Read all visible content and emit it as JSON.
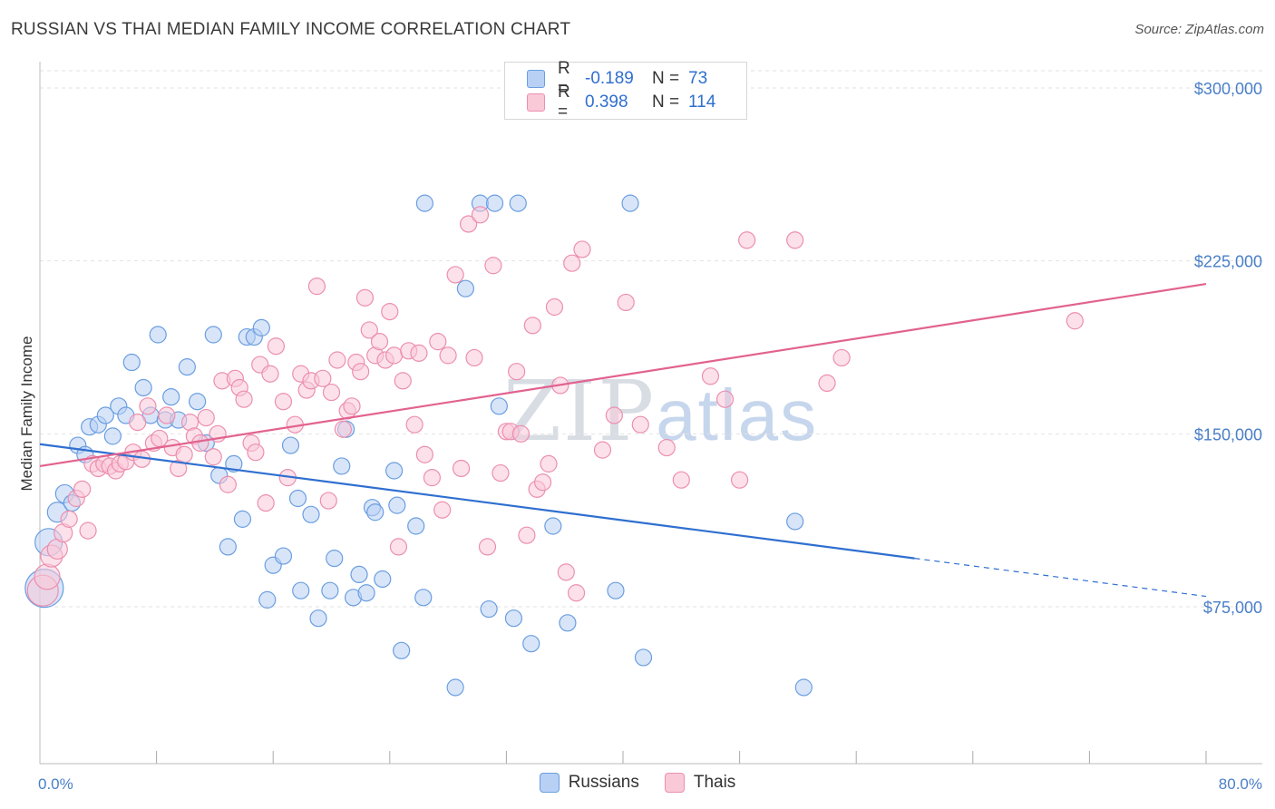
{
  "title": "RUSSIAN VS THAI MEDIAN FAMILY INCOME CORRELATION CHART",
  "source": "Source: ZipAtlas.com",
  "watermark": {
    "zip": "ZIP",
    "atlas": "atlas"
  },
  "colors": {
    "russians_fill": "#b8d0f4",
    "russians_stroke": "#6a9ee0",
    "russians_line": "#2f6fd0",
    "thais_fill": "#f9c9d8",
    "thais_stroke": "#ec8fae",
    "thais_line": "#e2628f",
    "tick_text": "#4a7fc8",
    "grid": "#e2e2e2"
  },
  "legend": {
    "rows": [
      {
        "r_label": "R =",
        "r_value": "-0.189",
        "n_label": "N =",
        "n_value": "73"
      },
      {
        "r_label": "R =",
        "r_value": "0.398",
        "n_label": "N =",
        "n_value": "114"
      }
    ]
  },
  "bottom_legend": [
    "Russians",
    "Thais"
  ],
  "chart_data": {
    "type": "scatter",
    "title": "RUSSIAN VS THAI MEDIAN FAMILY INCOME CORRELATION CHART",
    "ylabel": "Median Family Income",
    "xlabel": "",
    "xlim": [
      0,
      80
    ],
    "ylim": [
      0,
      315000
    ],
    "x_tick_labels": [
      "0.0%",
      "80.0%"
    ],
    "y_ticks": [
      75000,
      150000,
      225000,
      300000
    ],
    "y_tick_labels": [
      "$75,000",
      "$150,000",
      "$225,000",
      "$300,000"
    ],
    "grid": true,
    "legend_position": "top-center",
    "series": [
      {
        "name": "Russians",
        "trend": {
          "x0": 0,
          "y0": 145500,
          "x1": 60,
          "y1": 96000,
          "dashed_to_x": 80,
          "dashed_to_y": 79500
        },
        "points": [
          [
            0.3,
            83000,
            20
          ],
          [
            0.6,
            103000,
            14
          ],
          [
            1.2,
            116000,
            10
          ],
          [
            1.7,
            124000,
            9
          ],
          [
            2.2,
            120000,
            8
          ],
          [
            2.6,
            145000,
            8
          ],
          [
            3.1,
            141000,
            8
          ],
          [
            3.4,
            153000,
            8
          ],
          [
            4.0,
            154000,
            8
          ],
          [
            4.5,
            158000,
            8
          ],
          [
            5.0,
            149000,
            8
          ],
          [
            5.4,
            162000,
            8
          ],
          [
            5.9,
            158000,
            8
          ],
          [
            6.3,
            181000,
            8
          ],
          [
            7.1,
            170000,
            8
          ],
          [
            7.6,
            158000,
            8
          ],
          [
            8.1,
            193000,
            8
          ],
          [
            8.6,
            156000,
            8
          ],
          [
            9.0,
            166000,
            8
          ],
          [
            9.5,
            156000,
            8
          ],
          [
            10.1,
            179000,
            8
          ],
          [
            10.8,
            164000,
            8
          ],
          [
            11.4,
            146000,
            8
          ],
          [
            11.9,
            193000,
            8
          ],
          [
            12.3,
            132000,
            8
          ],
          [
            12.9,
            101000,
            8
          ],
          [
            13.3,
            137000,
            8
          ],
          [
            13.9,
            113000,
            8
          ],
          [
            14.2,
            192000,
            8
          ],
          [
            14.7,
            192000,
            8
          ],
          [
            15.2,
            196000,
            8
          ],
          [
            15.6,
            78000,
            8
          ],
          [
            16.0,
            93000,
            8
          ],
          [
            16.7,
            97000,
            8
          ],
          [
            17.2,
            145000,
            8
          ],
          [
            17.7,
            122000,
            8
          ],
          [
            17.9,
            82000,
            8
          ],
          [
            18.6,
            115000,
            8
          ],
          [
            19.1,
            70000,
            8
          ],
          [
            19.9,
            82000,
            8
          ],
          [
            20.2,
            96000,
            8
          ],
          [
            20.7,
            136000,
            8
          ],
          [
            21.0,
            152000,
            8
          ],
          [
            21.5,
            79000,
            8
          ],
          [
            21.9,
            89000,
            8
          ],
          [
            22.4,
            81000,
            8
          ],
          [
            22.8,
            118000,
            8
          ],
          [
            23.0,
            116000,
            8
          ],
          [
            23.5,
            87000,
            8
          ],
          [
            24.3,
            134000,
            8
          ],
          [
            24.5,
            119000,
            8
          ],
          [
            24.8,
            56000,
            8
          ],
          [
            25.8,
            110000,
            8
          ],
          [
            26.3,
            79000,
            8
          ],
          [
            26.4,
            250000,
            8
          ],
          [
            28.5,
            40000,
            8
          ],
          [
            29.2,
            213000,
            8
          ],
          [
            30.2,
            250000,
            8
          ],
          [
            30.8,
            74000,
            8
          ],
          [
            31.2,
            250000,
            8
          ],
          [
            31.5,
            162000,
            8
          ],
          [
            32.5,
            70000,
            8
          ],
          [
            32.8,
            250000,
            8
          ],
          [
            33.7,
            59000,
            8
          ],
          [
            35.2,
            110000,
            8
          ],
          [
            36.2,
            68000,
            8
          ],
          [
            39.5,
            82000,
            8
          ],
          [
            40.5,
            250000,
            8
          ],
          [
            41.4,
            53000,
            8
          ],
          [
            51.8,
            112000,
            8
          ],
          [
            52.4,
            40000,
            8
          ]
        ]
      },
      {
        "name": "Thais",
        "trend": {
          "x0": 0,
          "y0": 136000,
          "x1": 80,
          "y1": 215000
        },
        "points": [
          [
            0.2,
            82000,
            16
          ],
          [
            0.5,
            88000,
            13
          ],
          [
            0.8,
            97000,
            11
          ],
          [
            1.2,
            100000,
            10
          ],
          [
            1.6,
            107000,
            9
          ],
          [
            2.0,
            113000,
            8
          ],
          [
            2.5,
            122000,
            8
          ],
          [
            2.9,
            126000,
            8
          ],
          [
            3.3,
            108000,
            8
          ],
          [
            3.6,
            137000,
            8
          ],
          [
            4.0,
            135000,
            8
          ],
          [
            4.4,
            137000,
            8
          ],
          [
            4.8,
            136000,
            8
          ],
          [
            5.2,
            134000,
            8
          ],
          [
            5.5,
            137000,
            8
          ],
          [
            5.9,
            138000,
            8
          ],
          [
            6.4,
            142000,
            8
          ],
          [
            6.7,
            155000,
            8
          ],
          [
            7.0,
            139000,
            8
          ],
          [
            7.4,
            162000,
            8
          ],
          [
            7.8,
            146000,
            8
          ],
          [
            8.2,
            148000,
            8
          ],
          [
            8.7,
            158000,
            8
          ],
          [
            9.1,
            144000,
            8
          ],
          [
            9.5,
            135000,
            8
          ],
          [
            9.9,
            141000,
            8
          ],
          [
            10.3,
            155000,
            8
          ],
          [
            10.6,
            149000,
            8
          ],
          [
            11.0,
            146000,
            8
          ],
          [
            11.4,
            157000,
            8
          ],
          [
            11.9,
            140000,
            8
          ],
          [
            12.2,
            150000,
            8
          ],
          [
            12.5,
            173000,
            8
          ],
          [
            12.9,
            128000,
            8
          ],
          [
            13.4,
            174000,
            8
          ],
          [
            13.7,
            170000,
            8
          ],
          [
            14.0,
            165000,
            8
          ],
          [
            14.5,
            146000,
            8
          ],
          [
            14.8,
            142000,
            8
          ],
          [
            15.1,
            180000,
            8
          ],
          [
            15.5,
            120000,
            8
          ],
          [
            15.8,
            176000,
            8
          ],
          [
            16.2,
            188000,
            8
          ],
          [
            16.7,
            164000,
            8
          ],
          [
            17.0,
            131000,
            8
          ],
          [
            17.5,
            154000,
            8
          ],
          [
            17.9,
            176000,
            8
          ],
          [
            18.3,
            169000,
            8
          ],
          [
            18.6,
            173000,
            8
          ],
          [
            19.0,
            214000,
            8
          ],
          [
            19.4,
            174000,
            8
          ],
          [
            19.8,
            121000,
            8
          ],
          [
            20.0,
            168000,
            8
          ],
          [
            20.4,
            182000,
            8
          ],
          [
            20.8,
            152000,
            8
          ],
          [
            21.1,
            160000,
            8
          ],
          [
            21.4,
            162000,
            8
          ],
          [
            21.7,
            181000,
            8
          ],
          [
            22.0,
            177000,
            8
          ],
          [
            22.3,
            209000,
            8
          ],
          [
            22.6,
            195000,
            8
          ],
          [
            23.0,
            184000,
            8
          ],
          [
            23.3,
            190000,
            8
          ],
          [
            23.7,
            182000,
            8
          ],
          [
            24.0,
            203000,
            8
          ],
          [
            24.3,
            184000,
            8
          ],
          [
            24.6,
            101000,
            8
          ],
          [
            24.9,
            173000,
            8
          ],
          [
            25.3,
            186000,
            8
          ],
          [
            25.7,
            154000,
            8
          ],
          [
            26.0,
            185000,
            8
          ],
          [
            26.4,
            141000,
            8
          ],
          [
            26.9,
            131000,
            8
          ],
          [
            27.3,
            190000,
            8
          ],
          [
            27.6,
            117000,
            8
          ],
          [
            28.0,
            184000,
            8
          ],
          [
            28.5,
            219000,
            8
          ],
          [
            28.9,
            135000,
            8
          ],
          [
            29.4,
            241000,
            8
          ],
          [
            29.8,
            183000,
            8
          ],
          [
            30.2,
            245000,
            8
          ],
          [
            30.7,
            101000,
            8
          ],
          [
            31.1,
            223000,
            8
          ],
          [
            31.6,
            133000,
            8
          ],
          [
            32.0,
            151000,
            8
          ],
          [
            32.3,
            151000,
            8
          ],
          [
            32.7,
            177000,
            8
          ],
          [
            33.0,
            150000,
            8
          ],
          [
            33.4,
            106000,
            8
          ],
          [
            33.8,
            197000,
            8
          ],
          [
            34.1,
            126000,
            8
          ],
          [
            34.5,
            129000,
            8
          ],
          [
            34.9,
            137000,
            8
          ],
          [
            35.3,
            205000,
            8
          ],
          [
            35.7,
            171000,
            8
          ],
          [
            36.1,
            90000,
            8
          ],
          [
            36.5,
            224000,
            8
          ],
          [
            36.8,
            81000,
            8
          ],
          [
            37.2,
            230000,
            8
          ],
          [
            38.6,
            143000,
            8
          ],
          [
            39.4,
            158000,
            8
          ],
          [
            40.2,
            207000,
            8
          ],
          [
            41.2,
            154000,
            8
          ],
          [
            43.0,
            144000,
            8
          ],
          [
            44.0,
            130000,
            8
          ],
          [
            46.0,
            175000,
            8
          ],
          [
            47.0,
            165000,
            8
          ],
          [
            48.0,
            130000,
            8
          ],
          [
            48.5,
            234000,
            8
          ],
          [
            51.8,
            234000,
            8
          ],
          [
            54.0,
            172000,
            8
          ],
          [
            55.0,
            183000,
            8
          ],
          [
            71.0,
            199000,
            8
          ]
        ]
      }
    ]
  }
}
